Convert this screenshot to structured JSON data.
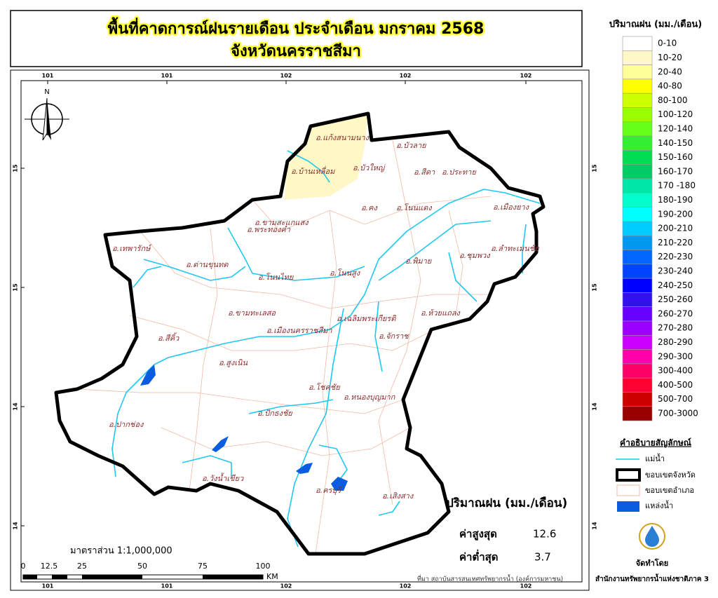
{
  "title": [
    "พื้นที่คาดการณ์ฝนรายเดือน ประจำเดือน มกราคม 2568",
    "จังหวัดนครราชสีมา"
  ],
  "north": "N",
  "grid": {
    "lon_labels": [
      "101",
      "101",
      "102",
      "102",
      "102"
    ],
    "lat_labels": [
      "15",
      "15",
      "14",
      "14"
    ]
  },
  "districts": [
    "อ.แก้งสนามนาง",
    "อ.บัวลาย",
    "อ.บ้านเหลื่อม",
    "อ.บัวใหญ่",
    "อ.สีดา",
    "อ.ประทาย",
    "อ.คง",
    "อ.โนนแดง",
    "อ.เมืองยาง",
    "อ.ขามสะแกแสง",
    "อ.พระทองคำ",
    "อ.เทพารักษ์",
    "อ.ลำทะเมนชัย",
    "อ.ชุมพวง",
    "อ.ด่านขุนทด",
    "อ.พิมาย",
    "อ.โนนสูง",
    "อ.โนนไทย",
    "อ.ห้วยแถลง",
    "อ.ขามทะเลสอ",
    "อ.เฉลิมพระเกียรติ",
    "อ.เมืองนครราชสีมา",
    "อ.สีคิ้ว",
    "อ.จักราช",
    "อ.สูงเนิน",
    "อ.โชคชัย",
    "อ.หนองบุญมาก",
    "อ.ปากช่อง",
    "อ.ปักธงชัย",
    "อ.วังน้ำเขียว",
    "อ.ครบุรี",
    "อ.เสิงสาง"
  ],
  "legend": {
    "title": "ปริมาณฝน (มม./เดือน)",
    "classes": [
      {
        "label": "0-10",
        "color": "#ffffff"
      },
      {
        "label": "10-20",
        "color": "#fff7c6"
      },
      {
        "label": "20-40",
        "color": "#ffff99"
      },
      {
        "label": "40-80",
        "color": "#ffff00"
      },
      {
        "label": "80-100",
        "color": "#ccff00"
      },
      {
        "label": "100-120",
        "color": "#99ff00"
      },
      {
        "label": "120-140",
        "color": "#66ff1a"
      },
      {
        "label": "140-150",
        "color": "#33ee33"
      },
      {
        "label": "150-160",
        "color": "#00dd55"
      },
      {
        "label": "160-170",
        "color": "#00cc66"
      },
      {
        "label": "170 -180",
        "color": "#00e6a8"
      },
      {
        "label": "180-190",
        "color": "#00ffcc"
      },
      {
        "label": "190-200",
        "color": "#00ffff"
      },
      {
        "label": "200-210",
        "color": "#00ccff"
      },
      {
        "label": "210-220",
        "color": "#0099ee"
      },
      {
        "label": "220-230",
        "color": "#0066ff"
      },
      {
        "label": "230-240",
        "color": "#0044ff"
      },
      {
        "label": "240-250",
        "color": "#0000ff"
      },
      {
        "label": "250-260",
        "color": "#3311ee"
      },
      {
        "label": "260-270",
        "color": "#6600ff"
      },
      {
        "label": "270-280",
        "color": "#9900ff"
      },
      {
        "label": "280-290",
        "color": "#cc00ff"
      },
      {
        "label": "290-300",
        "color": "#ff00aa"
      },
      {
        "label": "300-400",
        "color": "#ff0066"
      },
      {
        "label": "400-500",
        "color": "#ff0033"
      },
      {
        "label": "500-700",
        "color": "#cc0000"
      },
      {
        "label": "700-3000",
        "color": "#990000"
      }
    ]
  },
  "symbols": {
    "title": "คำอธิบายสัญลักษณ์",
    "items": [
      "แม่น้ำ",
      "ขอบเขตจังหวัด",
      "ขอบเขตอำเภอ",
      "แหล่งน้ำ"
    ]
  },
  "stats": {
    "title": "ปริมาณฝน (มม./เดือน)",
    "max_label": "ค่าสูงสุด",
    "max": "12.6",
    "min_label": "ค่าต่ำสุด",
    "min": "3.7"
  },
  "scale": {
    "label": "มาตราส่วน 1:1,000,000",
    "ticks": [
      "0",
      "12.5",
      "25",
      "50",
      "75",
      "100"
    ],
    "unit": "KM"
  },
  "source": "ที่มา  สถาบันสารสนเทศทรัพยากรน้ำ (องค์การมหาชน)",
  "credit": {
    "by": "จัดทำโดย",
    "org": "สำนักงานทรัพยากรน้ำแห่งชาติภาค 3"
  }
}
